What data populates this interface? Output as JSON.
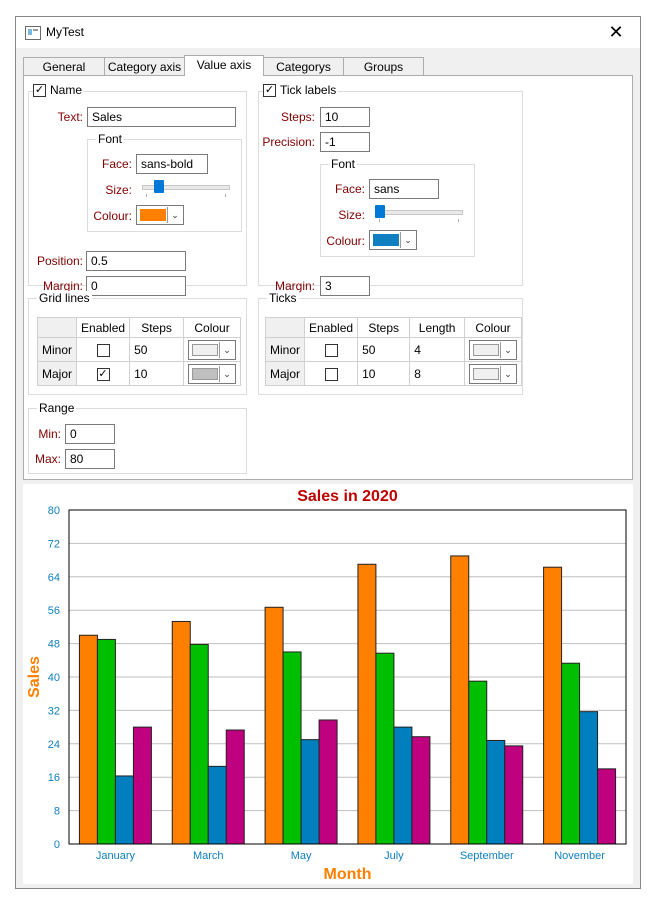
{
  "window": {
    "title": "MyTest",
    "close_glyph": "✕"
  },
  "tabs": [
    "General",
    "Category axis",
    "Value axis",
    "Categorys",
    "Groups"
  ],
  "name_group": {
    "title": "Name",
    "enabled": true,
    "text_label": "Text:",
    "text_value": "Sales",
    "font": {
      "title": "Font",
      "face_label": "Face:",
      "face_value": "sans-bold",
      "size_label": "Size:",
      "size_level": 0.15,
      "colour_label": "Colour:",
      "colour": "#ff7f00"
    },
    "position_label": "Position:",
    "position_value": "0.5",
    "margin_label": "Margin:",
    "margin_value": "0"
  },
  "tick_labels_group": {
    "title": "Tick labels",
    "enabled": true,
    "steps_label": "Steps:",
    "steps_value": "10",
    "precision_label": "Precision:",
    "precision_value": "-1",
    "font": {
      "title": "Font",
      "face_label": "Face:",
      "face_value": "sans",
      "size_label": "Size:",
      "size_level": 0.0,
      "colour_label": "Colour:",
      "colour": "#0f7fbf"
    },
    "margin_label": "Margin:",
    "margin_value": "3"
  },
  "grid_lines_group": {
    "title": "Grid lines",
    "headers": [
      "Enabled",
      "Steps",
      "Colour"
    ],
    "rows": [
      {
        "name": "Minor",
        "enabled": false,
        "steps": "50",
        "colour": "#f0f0f0"
      },
      {
        "name": "Major",
        "enabled": true,
        "steps": "10",
        "colour": "#bfbfbf"
      }
    ]
  },
  "ticks_group": {
    "title": "Ticks",
    "headers": [
      "Enabled",
      "Steps",
      "Length",
      "Colour"
    ],
    "rows": [
      {
        "name": "Minor",
        "enabled": false,
        "steps": "50",
        "length": "4",
        "colour": "#f0f0f0"
      },
      {
        "name": "Major",
        "enabled": false,
        "steps": "10",
        "length": "8",
        "colour": "#f0f0f0"
      }
    ]
  },
  "range_group": {
    "title": "Range",
    "min_label": "Min:",
    "min_value": "0",
    "max_label": "Max:",
    "max_value": "80"
  },
  "check_glyph": "✓",
  "dropdown_glyph": "⌄",
  "colors": {
    "title": "#c00000",
    "axis_name": "#ff7f00",
    "tick_labels": "#0f7fbf"
  },
  "chart_data": {
    "type": "bar",
    "title": "Sales in 2020",
    "xlabel": "Month",
    "ylabel": "Sales",
    "ylim": [
      0,
      80
    ],
    "yticks": [
      0,
      8,
      16,
      24,
      32,
      40,
      48,
      56,
      64,
      72,
      80
    ],
    "grid": true,
    "categories": [
      "January",
      "March",
      "May",
      "July",
      "September",
      "November"
    ],
    "series": [
      {
        "color": "#ff7f00",
        "values": [
          50,
          53.3,
          56.7,
          67,
          69,
          66.3
        ]
      },
      {
        "color": "#00bf00",
        "values": [
          49,
          47.8,
          46,
          45.7,
          39,
          43.3
        ]
      },
      {
        "color": "#007fbf",
        "values": [
          16.3,
          18.6,
          25,
          28,
          24.8,
          31.7
        ]
      },
      {
        "color": "#bf007f",
        "values": [
          28,
          27.3,
          29.7,
          25.7,
          23.5,
          18
        ]
      }
    ]
  }
}
